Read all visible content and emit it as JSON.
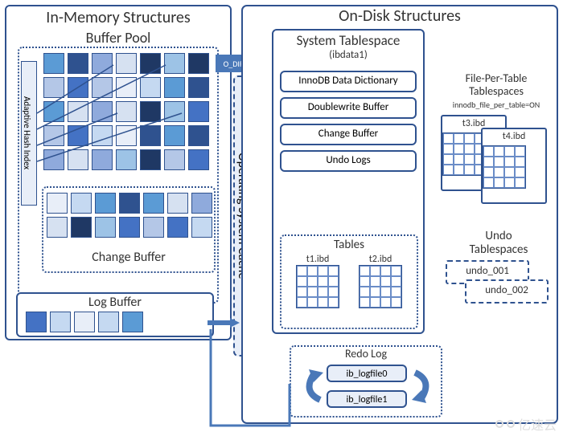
{
  "sections": {
    "in_memory_title": "In-Memory Structures",
    "on_disk_title": "On-Disk Structures",
    "buffer_pool_title": "Buffer Pool",
    "adaptive_hash_index": "Adaptive Hash Index",
    "change_buffer_title": "Change Buffer",
    "log_buffer_title": "Log Buffer",
    "os_cache_title": "Operating System Cache",
    "o_direct_label": "O_DIRECT"
  },
  "system_tablespace": {
    "title": "System Tablespace",
    "subtitle": "(ibdata1)",
    "items": [
      "InnoDB Data Dictionary",
      "Doublewrite Buffer",
      "Change Buffer",
      "Undo Logs"
    ],
    "tables_title": "Tables",
    "tables": [
      "t1.ibd",
      "t2.ibd"
    ]
  },
  "file_per_table": {
    "title": "File-Per-Table Tablespaces",
    "subtitle": "innodb_file_per_table=ON",
    "files": [
      "t3.ibd",
      "t4.ibd"
    ]
  },
  "undo_tablespaces": {
    "title": "Undo Tablespaces",
    "files": [
      "undo_001",
      "undo_002"
    ]
  },
  "redo_log": {
    "title": "Redo Log",
    "files": [
      "ib_logfile0",
      "ib_logfile1"
    ]
  },
  "colors": {
    "border": "#2f528f",
    "cells": [
      "#b4c7e7",
      "#e8eef8",
      "#2f528f",
      "#8faadc",
      "#9dc3e6",
      "#4472c4",
      "#c5d9f1",
      "#5b9bd5",
      "#d6e1f1",
      "#1f3864"
    ],
    "arrow": "#4a78b8",
    "os_cache_bg": "#e8eef8",
    "text": "#333333"
  },
  "layout": {
    "buffer_pool_grid": {
      "cols": 7,
      "rows": 5,
      "cell_size": 26
    },
    "change_buffer_grid": {
      "cols": 7,
      "rows": 2,
      "cell_size": 26
    },
    "log_buffer_grid": {
      "cols": 5,
      "rows": 1,
      "cell_size": 26
    }
  },
  "watermark": "亿速云"
}
